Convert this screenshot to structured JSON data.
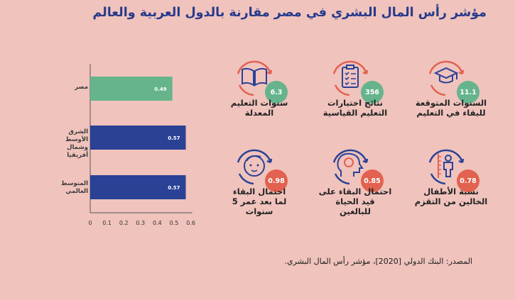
{
  "title": "مؤشر رأس المال البشري في مصر مقارنة بالدول العربية والعالم",
  "colors": {
    "background": "#f0c3bd",
    "title": "#273a8a",
    "bar_egypt": "#66b48c",
    "bar_other": "#2a4195",
    "badge_green": "#66b48c",
    "badge_red": "#e2614f",
    "icon_blue": "#2a4195",
    "icon_red": "#e2614f"
  },
  "chart_data": {
    "type": "bar",
    "orientation": "horizontal",
    "categories": [
      "مصر",
      "الشرق الأوسط\nوشمال أفريقيا",
      "المتوسط\nالعالمي"
    ],
    "values": [
      0.49,
      0.57,
      0.57
    ],
    "value_labels": [
      "0.49",
      "0.57",
      "0.57"
    ],
    "xlim": [
      0,
      0.6
    ],
    "xticks": [
      "0",
      "0.1",
      "0.2",
      "0.3",
      "0.4",
      "0.5",
      "0.6"
    ],
    "grid": false
  },
  "indicators": [
    {
      "label": "السنوات المتوقعة\nللبقاء في التعليم",
      "value": "11.1",
      "icon": "graduation-cap-icon",
      "color": "green"
    },
    {
      "label": "نتائج اختبارات\nالتعليم القياسية",
      "value": "356",
      "icon": "clipboard-checklist-icon",
      "color": "green"
    },
    {
      "label": "سنوات التعليم\nالمعدلة",
      "value": "6.3",
      "icon": "open-book-icon",
      "color": "green"
    },
    {
      "label": "نسبة الأطفال\nالخالين من التقزم",
      "value": "0.78",
      "icon": "child-height-icon",
      "color": "red"
    },
    {
      "label": "احتمال البقاء على قيد الحياة\nللبالغين",
      "value": "0.85",
      "icon": "head-brain-icon",
      "color": "red"
    },
    {
      "label": "احتمال البقاء\nلما بعد عمر 5 سنوات",
      "value": "0.98",
      "icon": "baby-face-icon",
      "color": "red"
    }
  ],
  "source": "المصدر: البنك الدولي [2020]، مؤشر رأس المال البشري."
}
